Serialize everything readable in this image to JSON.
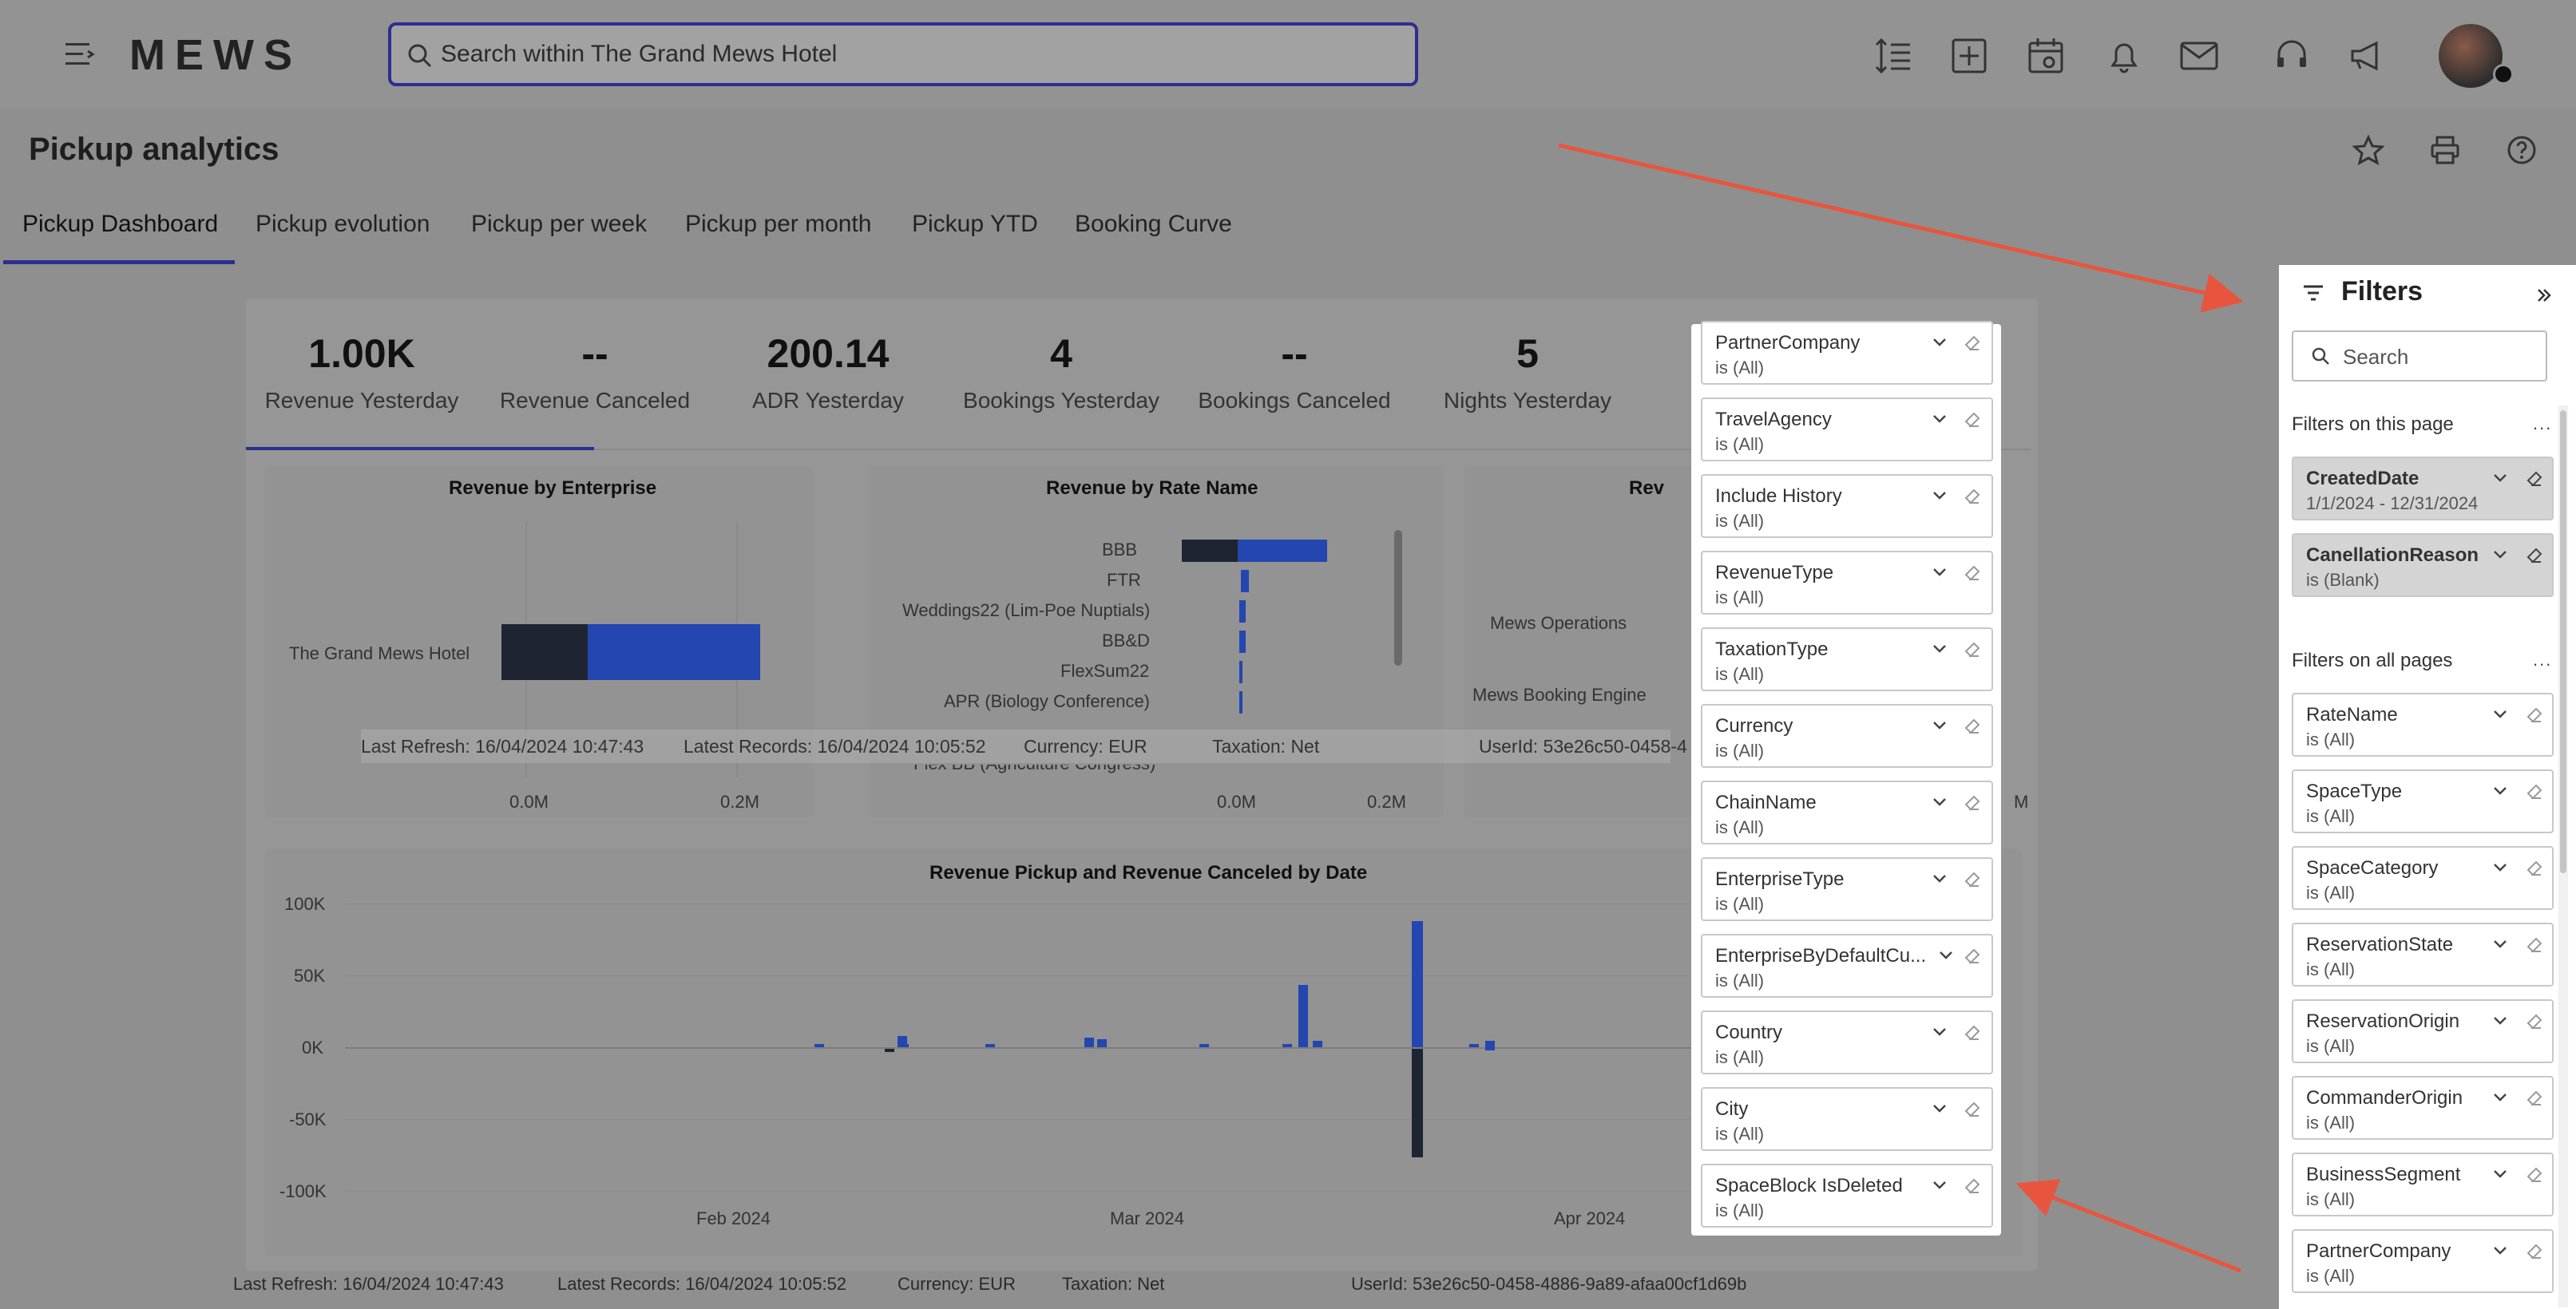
{
  "header": {
    "logo": "MEWS",
    "search_placeholder": "Search within The Grand Mews Hotel"
  },
  "page": {
    "title": "Pickup analytics"
  },
  "tabs": [
    {
      "label": "Pickup Dashboard"
    },
    {
      "label": "Pickup evolution"
    },
    {
      "label": "Pickup per week"
    },
    {
      "label": "Pickup per month"
    },
    {
      "label": "Pickup YTD"
    },
    {
      "label": "Booking Curve"
    }
  ],
  "kpis": [
    {
      "value": "1.00K",
      "label": "Revenue Yesterday"
    },
    {
      "value": "--",
      "label": "Revenue Canceled"
    },
    {
      "value": "200.14",
      "label": "ADR Yesterday"
    },
    {
      "value": "4",
      "label": "Bookings Yesterday"
    },
    {
      "value": "--",
      "label": "Bookings Canceled"
    },
    {
      "value": "5",
      "label": "Nights Yesterday"
    }
  ],
  "visuals": {
    "enterprise": {
      "title": "Revenue by Enterprise",
      "category": "The Grand Mews Hotel",
      "ticks": [
        "0.0M",
        "0.2M"
      ]
    },
    "rate": {
      "title": "Revenue by Rate Name",
      "categories": [
        "BBB",
        "FTR",
        "Weddings22 (Lim-Poe Nuptials)",
        "BB&D",
        "FlexSum22",
        "APR (Biology Conference)",
        "Flex BB (Agriculture Congress)"
      ],
      "ticks": [
        "0.0M",
        "0.2M"
      ]
    },
    "third": {
      "title": "Rev",
      "categories": [
        "Mews Operations",
        "Mews Booking Engine"
      ],
      "tick": "M"
    },
    "pickup": {
      "title": "Revenue Pickup and Revenue Canceled by Date",
      "yticks": [
        "100K",
        "50K",
        "0K",
        "-50K",
        "-100K"
      ],
      "xticks": [
        "Feb 2024",
        "Mar 2024",
        "Apr 2024"
      ]
    }
  },
  "overlay_strip": {
    "last_refresh": "Last Refresh: 16/04/2024 10:47:43",
    "latest_records": "Latest Records: 16/04/2024 10:05:52",
    "currency": "Currency: EUR",
    "taxation": "Taxation: Net",
    "userid": "UserId: 53e26c50-0458-4"
  },
  "footer": {
    "last_refresh": "Last Refresh: 16/04/2024 10:47:43",
    "latest_records": "Latest Records: 16/04/2024 10:05:52",
    "currency": "Currency: EUR",
    "taxation": "Taxation: Net",
    "userid": "UserId: 53e26c50-0458-4886-9a89-afaa00cf1d69b"
  },
  "dropdown_filters": [
    {
      "name": "PartnerCompany",
      "state": "is (All)"
    },
    {
      "name": "TravelAgency",
      "state": "is (All)"
    },
    {
      "name": "Include History",
      "state": "is (All)"
    },
    {
      "name": "RevenueType",
      "state": "is (All)"
    },
    {
      "name": "TaxationType",
      "state": "is (All)"
    },
    {
      "name": "Currency",
      "state": "is (All)"
    },
    {
      "name": "ChainName",
      "state": "is (All)"
    },
    {
      "name": "EnterpriseType",
      "state": "is (All)"
    },
    {
      "name": "EnterpriseByDefaultCu...",
      "state": "is (All)"
    },
    {
      "name": "Country",
      "state": "is (All)"
    },
    {
      "name": "City",
      "state": "is (All)"
    },
    {
      "name": "SpaceBlock IsDeleted",
      "state": "is (All)"
    }
  ],
  "filters_pane": {
    "title": "Filters",
    "search_placeholder": "Search",
    "this_page_label": "Filters on this page",
    "all_pages_label": "Filters on all pages",
    "more": "...",
    "this_page": [
      {
        "name": "CreatedDate",
        "state": "1/1/2024 - 12/31/2024"
      },
      {
        "name": "CanellationReason",
        "state": "is (Blank)"
      }
    ],
    "all_pages": [
      {
        "name": "RateName",
        "state": "is (All)"
      },
      {
        "name": "SpaceType",
        "state": "is (All)"
      },
      {
        "name": "SpaceCategory",
        "state": "is (All)"
      },
      {
        "name": "ReservationState",
        "state": "is (All)"
      },
      {
        "name": "ReservationOrigin",
        "state": "is (All)"
      },
      {
        "name": "CommanderOrigin",
        "state": "is (All)"
      },
      {
        "name": "BusinessSegment",
        "state": "is (All)"
      },
      {
        "name": "PartnerCompany",
        "state": "is (All)"
      }
    ]
  },
  "colors": {
    "accent": "#2b2f8f",
    "bar_blue": "#2446b0",
    "bar_dark": "#1f2433",
    "arrow": "#e8553e"
  }
}
